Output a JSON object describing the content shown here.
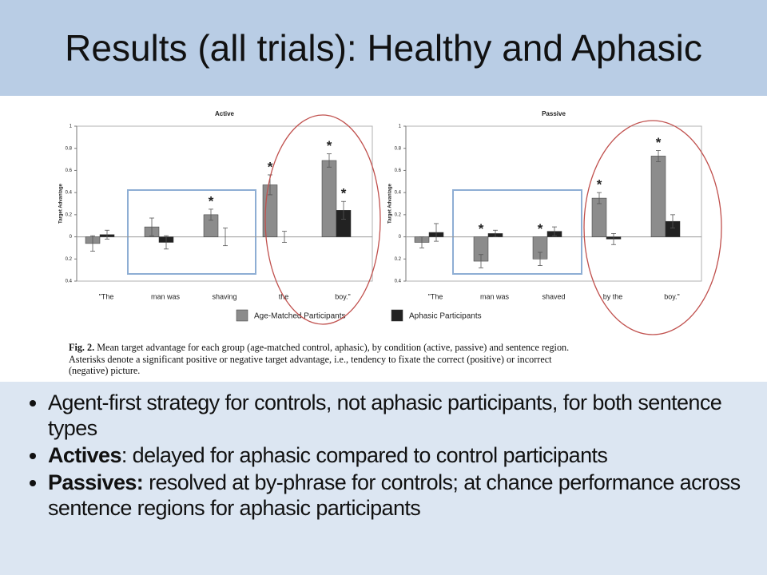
{
  "slide_title": "Results (all trials): Healthy and Aphasic",
  "chart_data": [
    {
      "type": "bar",
      "title": "Active",
      "ylabel": "Target Advantage",
      "categories": [
        "\"The",
        "man was",
        "shaving",
        "the",
        "boy.\""
      ],
      "series": [
        {
          "name": "Age-Matched Participants",
          "color": "#8c8c8c",
          "values": [
            -0.06,
            0.09,
            0.2,
            0.47,
            0.69
          ],
          "errors": [
            0.07,
            0.08,
            0.05,
            0.09,
            0.06
          ]
        },
        {
          "name": "Aphasic Participants",
          "color": "#222222",
          "values": [
            0.02,
            -0.05,
            0,
            0,
            0.24
          ],
          "errors": [
            0.04,
            0.06,
            0.08,
            0.05,
            0.08
          ]
        }
      ],
      "ylim": [
        -0.4,
        1
      ],
      "yticks": [
        {
          "value": -0.4,
          "label": "0.4"
        },
        {
          "value": -0.2,
          "label": "0.2"
        },
        0,
        0.2,
        0.4,
        0.6,
        0.8,
        1
      ],
      "annotations": [
        {
          "text": "*",
          "series": "Age-Matched Participants",
          "category": "shaving"
        },
        {
          "text": "*",
          "series": "Age-Matched Participants",
          "category": "the"
        },
        {
          "text": "*",
          "series": "Age-Matched Participants",
          "category": "boy.\""
        },
        {
          "text": "*",
          "series": "Aphasic Participants",
          "category": "boy.\""
        }
      ]
    },
    {
      "type": "bar",
      "title": "Passive",
      "ylabel": "Target Advantage",
      "categories": [
        "\"The",
        "man was",
        "shaved",
        "by the",
        "boy.\""
      ],
      "series": [
        {
          "name": "Age-Matched Participants",
          "color": "#8c8c8c",
          "values": [
            -0.05,
            -0.22,
            -0.2,
            0.35,
            0.73
          ],
          "errors": [
            0.05,
            0.06,
            0.06,
            0.05,
            0.05
          ]
        },
        {
          "name": "Aphasic Participants",
          "color": "#222222",
          "values": [
            0.04,
            0.03,
            0.05,
            -0.02,
            0.14
          ],
          "errors": [
            0.08,
            0.03,
            0.04,
            0.05,
            0.06
          ]
        }
      ],
      "ylim": [
        -0.4,
        1
      ],
      "yticks": [
        {
          "value": -0.4,
          "label": "0.4"
        },
        {
          "value": -0.2,
          "label": "0.2"
        },
        0,
        0.2,
        0.4,
        0.6,
        0.8,
        1
      ],
      "annotations": [
        {
          "text": "*",
          "series": "Age-Matched Participants",
          "category": "man was"
        },
        {
          "text": "*",
          "series": "Age-Matched Participants",
          "category": "shaved"
        },
        {
          "text": "*",
          "series": "Age-Matched Participants",
          "category": "by the"
        },
        {
          "text": "*",
          "series": "Age-Matched Participants",
          "category": "boy.\""
        }
      ]
    }
  ],
  "caption": {
    "label": "Fig. 2.",
    "lines": [
      "Mean target advantage for each group (age-matched control, aphasic), by condition (active, passive) and sentence region.",
      "Asterisks denote a significant positive or negative target advantage, i.e., tendency to fixate the correct (positive) or incorrect",
      "(negative) picture."
    ]
  },
  "bullets": [
    {
      "text": "Agent-first strategy for controls, not aphasic participants, for both sentence types"
    },
    {
      "bold": "Actives",
      "text": ": delayed for aphasic compared to control participants"
    },
    {
      "bold": "Passives:",
      "text": " resolved at by-phrase for controls; at chance performance across sentence regions for aphasic participants"
    }
  ]
}
